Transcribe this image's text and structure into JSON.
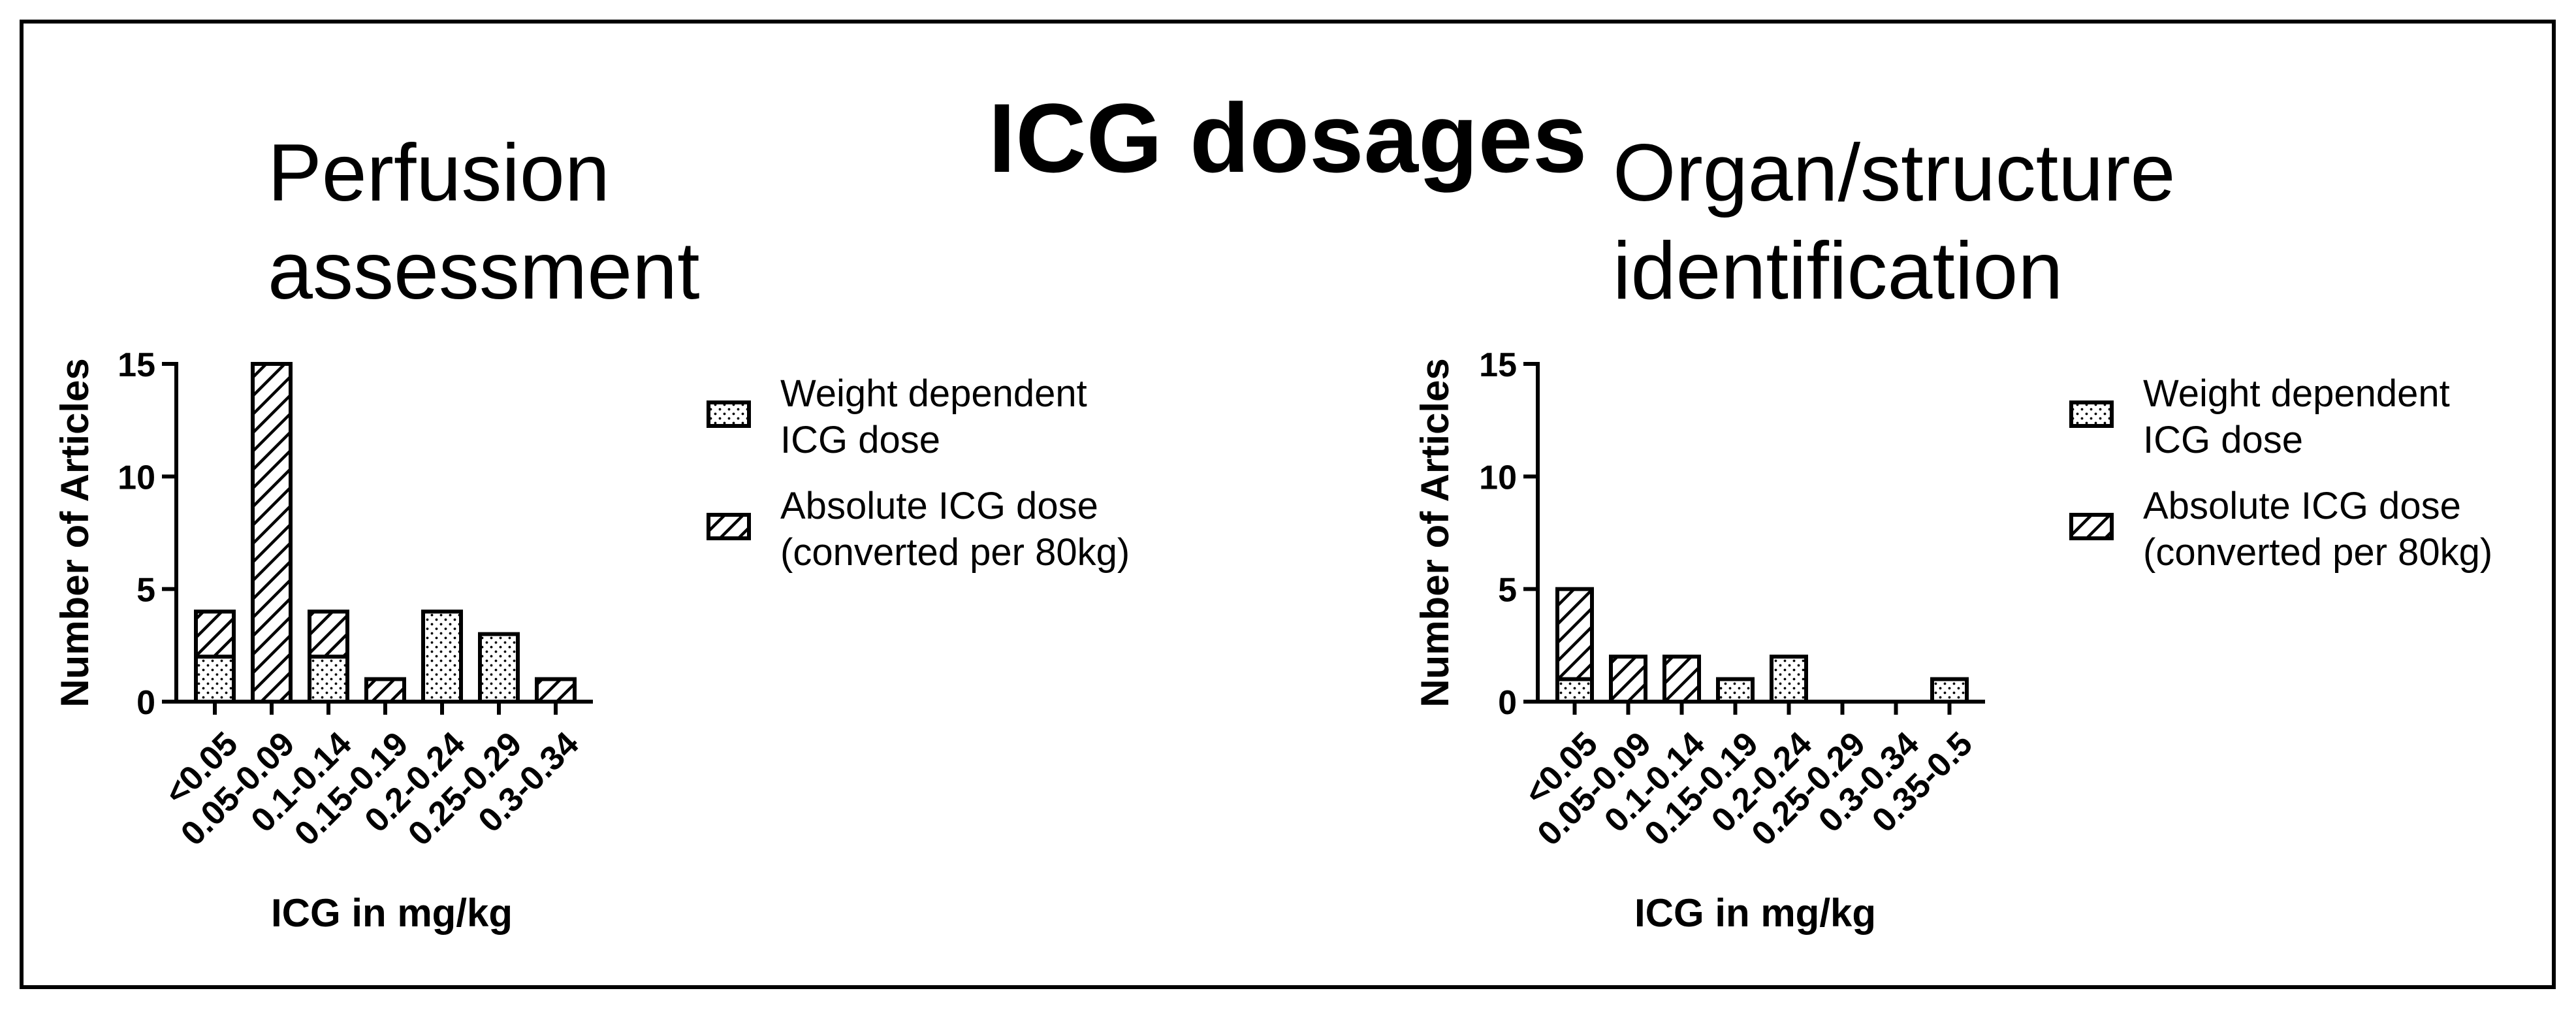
{
  "figure": {
    "title": "ICG dosages"
  },
  "legend_items": [
    {
      "key": "weight",
      "label_line1": "Weight dependent",
      "label_line2": "ICG dose",
      "pattern": "dots"
    },
    {
      "key": "absolute",
      "label_line1": "Absolute ICG dose",
      "label_line2": "(converted per 80kg)",
      "pattern": "hatch"
    }
  ],
  "chart_data": [
    {
      "type": "bar",
      "stacked": true,
      "title": "Perfusion assessment",
      "title_lines": [
        "Perfusion",
        "assessment"
      ],
      "xlabel": "ICG in mg/kg",
      "ylabel": "Number of Articles",
      "ylim": [
        0,
        15
      ],
      "yticks": [
        0,
        5,
        10,
        15
      ],
      "categories": [
        "<0.05",
        "0.05-0.09",
        "0.1-0.14",
        "0.15-0.19",
        "0.2-0.24",
        "0.25-0.29",
        "0.3-0.34"
      ],
      "series": [
        {
          "name": "Weight dependent ICG dose",
          "values": [
            2,
            0,
            2,
            0,
            4,
            3,
            0
          ]
        },
        {
          "name": "Absolute ICG dose (converted per 80kg)",
          "values": [
            2,
            15,
            2,
            1,
            0,
            0,
            1
          ]
        }
      ],
      "legend_position": "right"
    },
    {
      "type": "bar",
      "stacked": true,
      "title": "Organ/structure identification",
      "title_lines": [
        "Organ/structure",
        "identification"
      ],
      "xlabel": "ICG in mg/kg",
      "ylabel": "Number of Articles",
      "ylim": [
        0,
        15
      ],
      "yticks": [
        0,
        5,
        10,
        15
      ],
      "categories": [
        "<0.05",
        "0.05-0.09",
        "0.1-0.14",
        "0.15-0.19",
        "0.2-0.24",
        "0.25-0.29",
        "0.3-0.34",
        "0.35-0.5"
      ],
      "series": [
        {
          "name": "Weight dependent ICG dose",
          "values": [
            1,
            0,
            0,
            1,
            2,
            0,
            0,
            1
          ]
        },
        {
          "name": "Absolute ICG dose (converted per 80kg)",
          "values": [
            4,
            2,
            2,
            0,
            0,
            0,
            0,
            0
          ]
        }
      ],
      "legend_position": "right"
    }
  ]
}
